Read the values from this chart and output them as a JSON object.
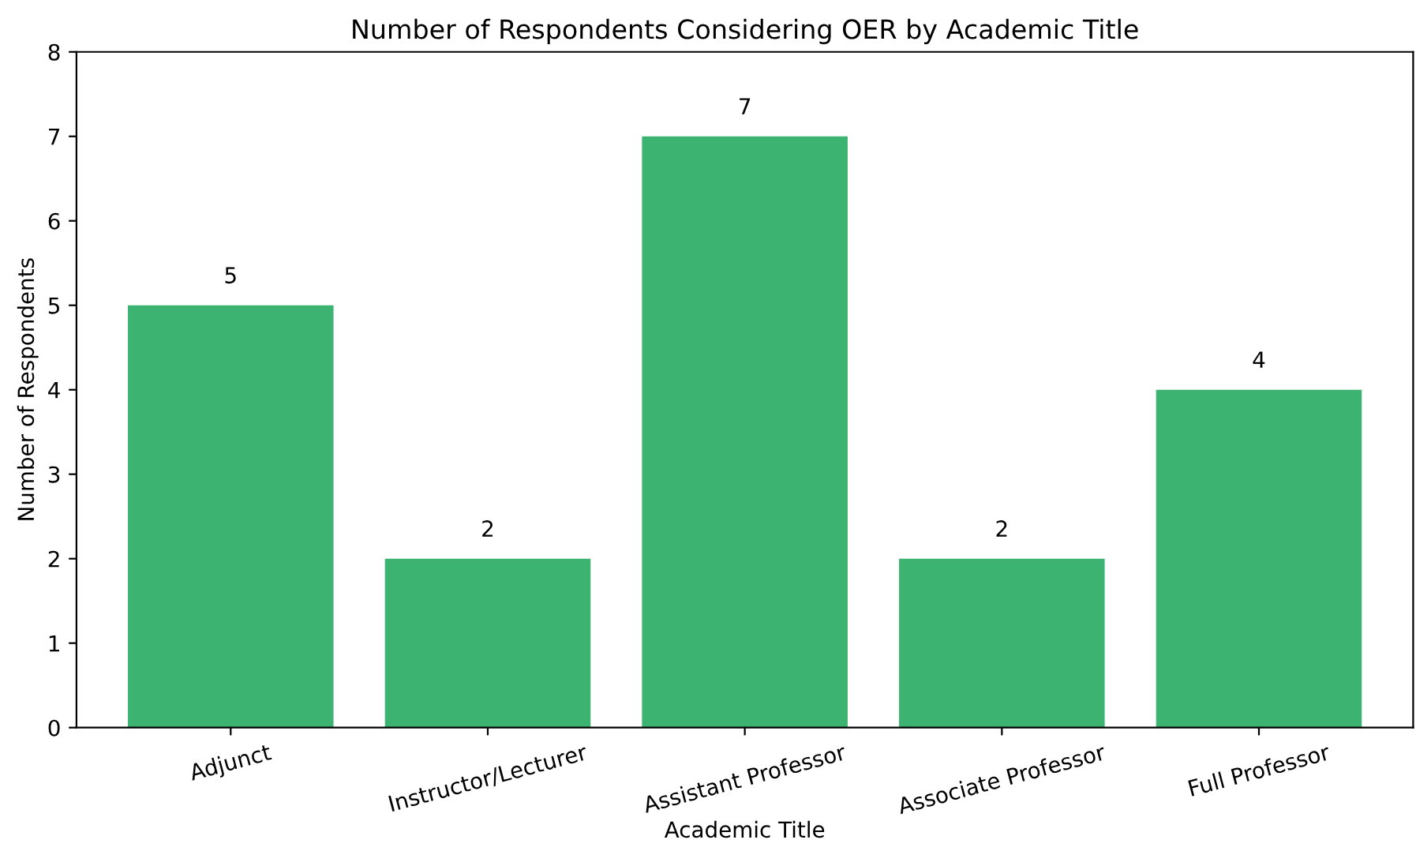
{
  "chart_data": {
    "type": "bar",
    "title": "Number of Respondents Considering OER by Academic Title",
    "xlabel": "Academic Title",
    "ylabel": "Number of Respondents",
    "categories": [
      "Adjunct",
      "Instructor/Lecturer",
      "Assistant Professor",
      "Associate Professor",
      "Full Professor"
    ],
    "values": [
      5,
      2,
      7,
      2,
      4
    ],
    "color": "#3cb371",
    "ylim": [
      0,
      8
    ],
    "yticks": [
      0,
      1,
      2,
      3,
      4,
      5,
      6,
      7,
      8
    ],
    "data_labels": true,
    "grid": false,
    "legend": false
  }
}
